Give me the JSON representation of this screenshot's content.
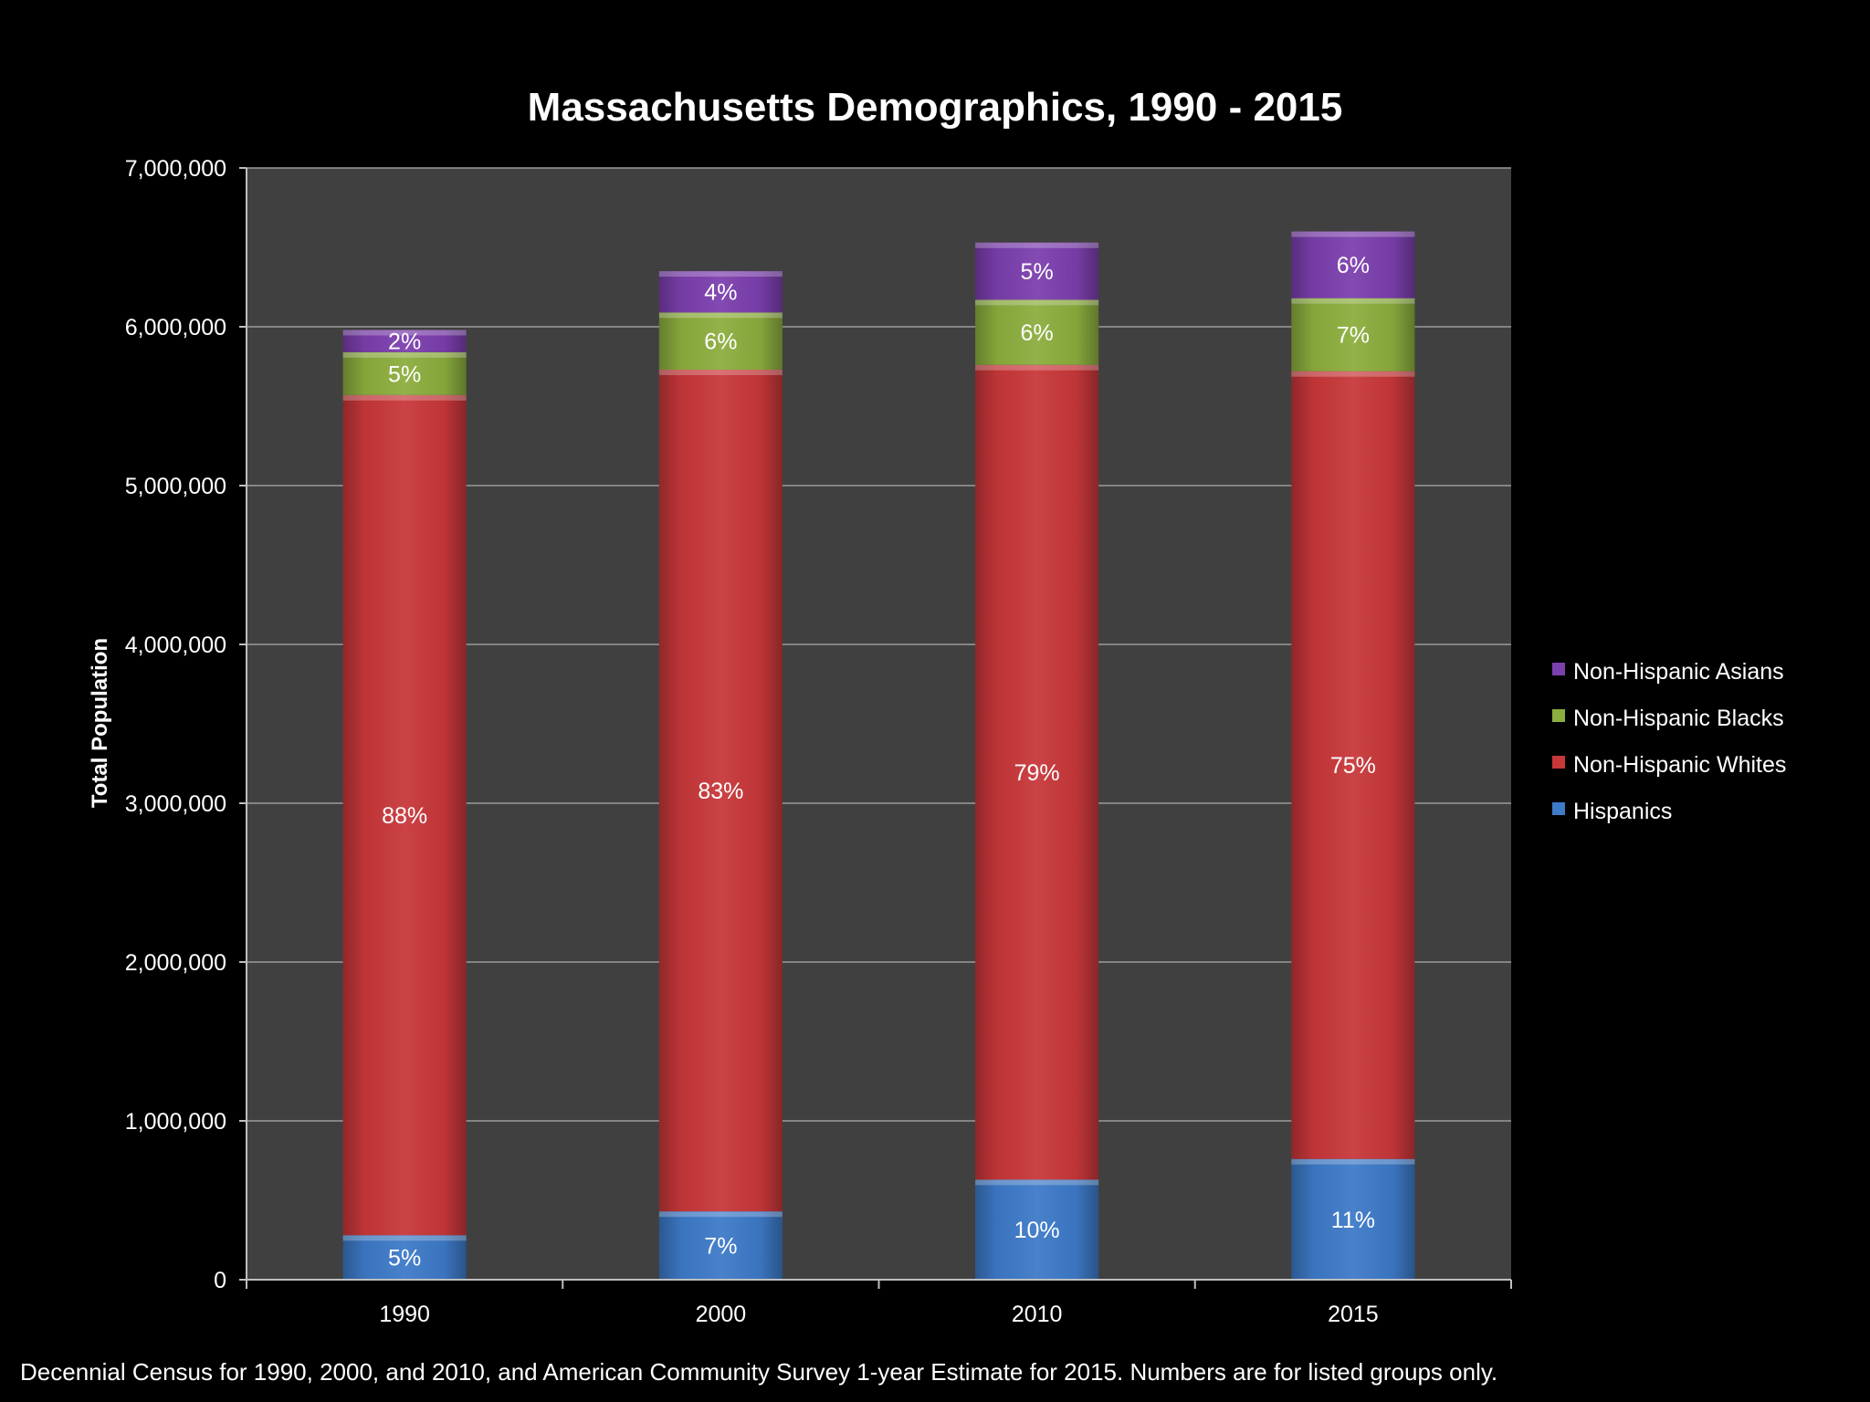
{
  "chart_data": {
    "type": "bar",
    "stacked": true,
    "title": "Massachusetts Demographics, 1990 - 2015",
    "xlabel": "",
    "ylabel": "Total Population",
    "ylim": [
      0,
      7000000
    ],
    "yticks": [
      0,
      1000000,
      2000000,
      3000000,
      4000000,
      5000000,
      6000000,
      7000000
    ],
    "ytick_labels": [
      "0",
      "1,000,000",
      "2,000,000",
      "3,000,000",
      "4,000,000",
      "5,000,000",
      "6,000,000",
      "7,000,000"
    ],
    "categories": [
      "1990",
      "2000",
      "2010",
      "2015"
    ],
    "grid": true,
    "legend_position": "right",
    "series": [
      {
        "name": "Hispanics",
        "color": "#3d7ac8",
        "values": [
          280000,
          430000,
          630000,
          760000
        ],
        "labels": [
          "5%",
          "7%",
          "10%",
          "11%"
        ]
      },
      {
        "name": "Non-Hispanic Whites",
        "color": "#c8373a",
        "values": [
          5290000,
          5300000,
          5130000,
          4960000
        ],
        "labels": [
          "88%",
          "83%",
          "79%",
          "75%"
        ]
      },
      {
        "name": "Non-Hispanic Blacks",
        "color": "#8cae3e",
        "values": [
          270000,
          360000,
          410000,
          460000
        ],
        "labels": [
          "5%",
          "6%",
          "6%",
          "7%"
        ]
      },
      {
        "name": "Non-Hispanic Asians",
        "color": "#7c3fae",
        "values": [
          140000,
          260000,
          360000,
          420000
        ],
        "labels": [
          "2%",
          "4%",
          "5%",
          "6%"
        ]
      }
    ]
  },
  "footnote": "Decennial Census for 1990, 2000, and 2010, and American Community Survey 1-year Estimate for 2015. Numbers are for listed groups only."
}
